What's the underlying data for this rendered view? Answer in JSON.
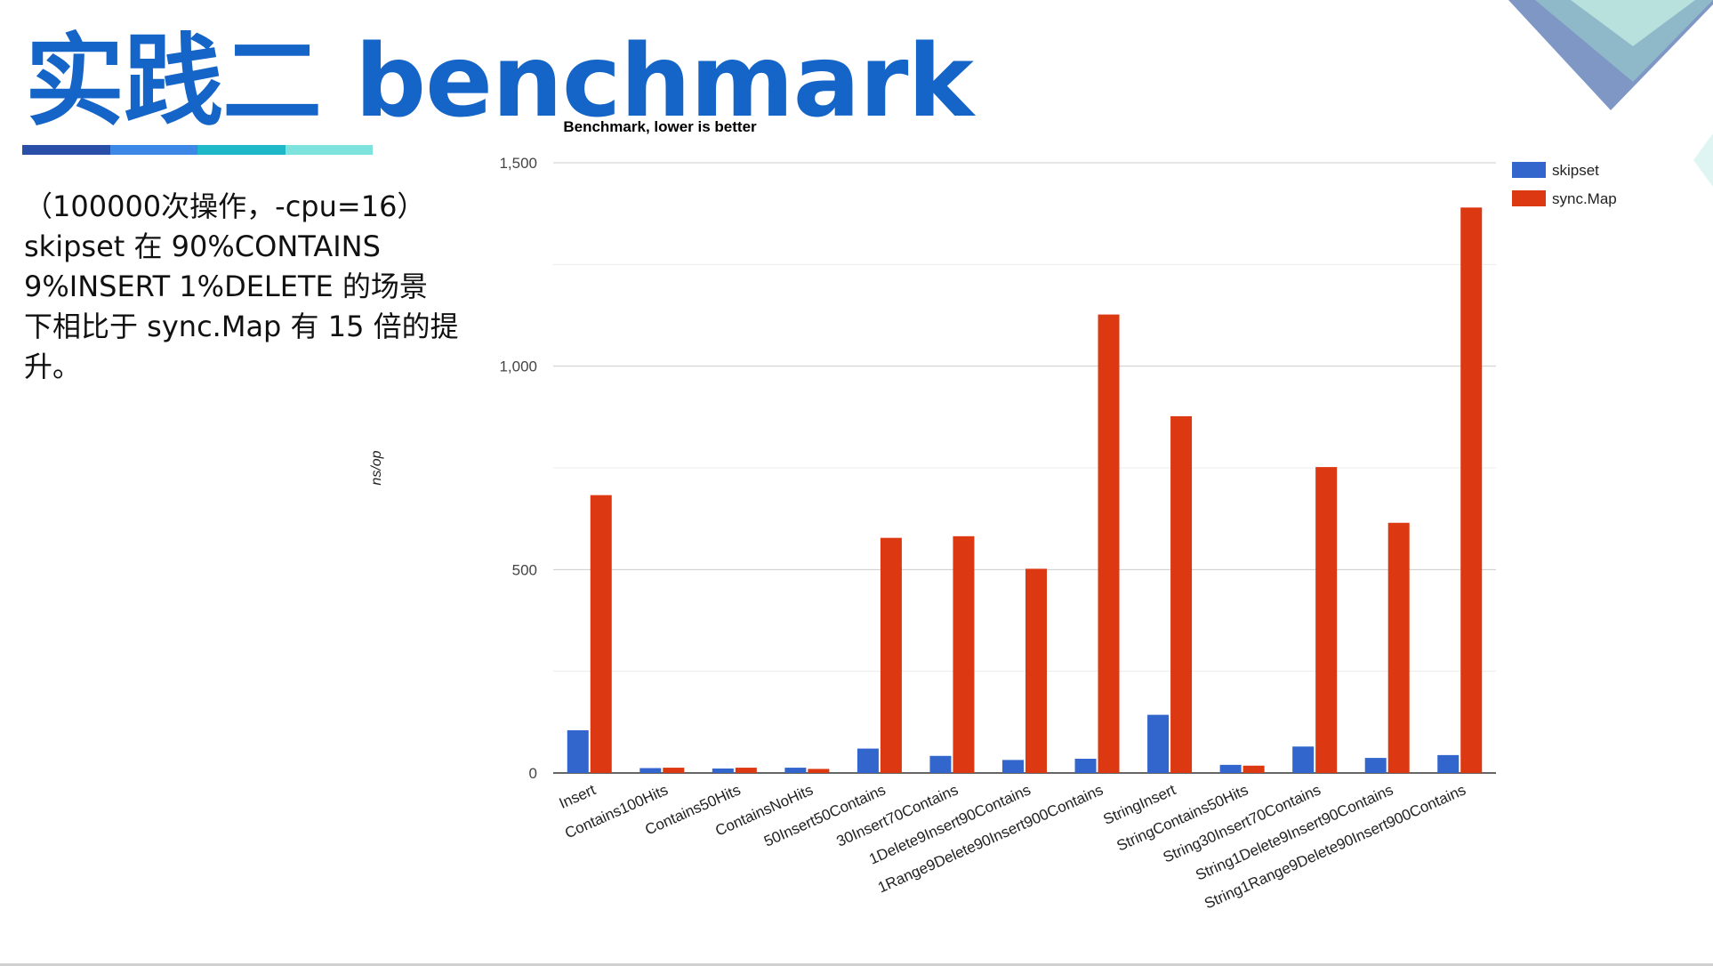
{
  "slide": {
    "title": "实践二 benchmark",
    "underline_colors": [
      "#2a4fa8",
      "#3d87e6",
      "#1fb8c9",
      "#7ee3dc"
    ],
    "description_lines": [
      "（100000次操作，-cpu=16）",
      "skipset 在 90%CONTAINS",
      "9%INSERT 1%DELETE 的场景",
      "下相比于 sync.Map 有 15 倍的提",
      "升。"
    ],
    "corner_colors": [
      "#7e97c4",
      "#8fb9c9",
      "#b8e0dd"
    ]
  },
  "chart_data": {
    "type": "bar",
    "title": "Benchmark, lower is better",
    "xlabel": "",
    "ylabel": "ns/op",
    "ylim": [
      0,
      1500
    ],
    "yticks": [
      0,
      500,
      1000,
      1500
    ],
    "ytick_labels": [
      "0",
      "500",
      "1,000",
      "1,500"
    ],
    "minor_gridlines": [
      250,
      750,
      1250
    ],
    "grid": true,
    "legend_position": "right",
    "categories": [
      "Insert",
      "Contains100Hits",
      "Contains50Hits",
      "ContainsNoHits",
      "50Insert50Contains",
      "30Insert70Contains",
      "1Delete9Insert90Contains",
      "1Range9Delete90Insert900Contains",
      "StringInsert",
      "StringContains50Hits",
      "String30Insert70Contains",
      "String1Delete9Insert90Contains",
      "String1Range9Delete90Insert900Contains"
    ],
    "series": [
      {
        "name": "skipset",
        "color": "#3366cc",
        "values": [
          105,
          12,
          11,
          13,
          60,
          42,
          32,
          35,
          143,
          20,
          65,
          37,
          44
        ]
      },
      {
        "name": "sync.Map",
        "color": "#dc3912",
        "values": [
          683,
          13,
          13,
          10,
          578,
          582,
          502,
          1127,
          877,
          18,
          752,
          615,
          1390
        ]
      }
    ]
  }
}
